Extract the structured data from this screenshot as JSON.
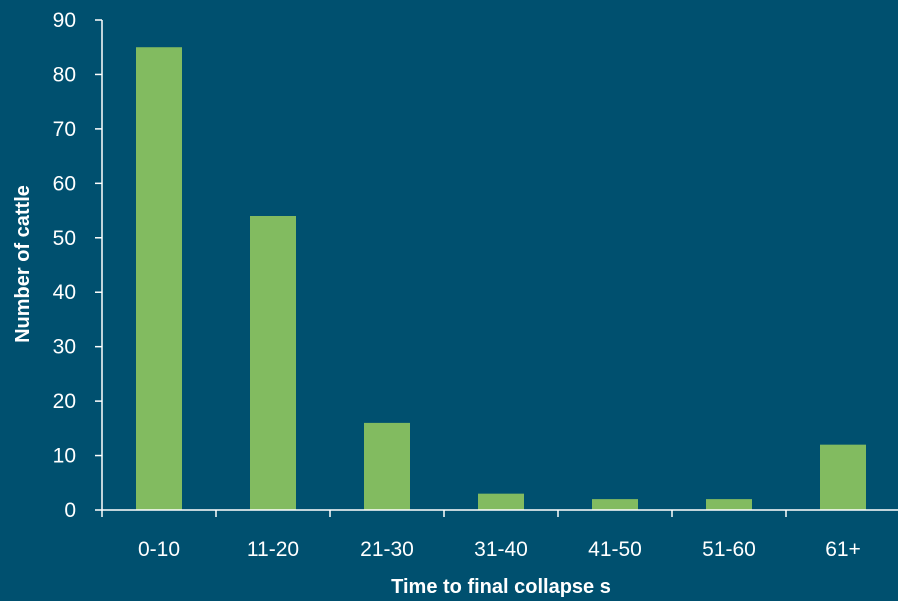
{
  "chart_data": {
    "type": "bar",
    "title": "",
    "xlabel": "Time to final collapse  s",
    "ylabel": "Number of cattle",
    "categories": [
      "0-10",
      "11-20",
      "21-30",
      "31-40",
      "41-50",
      "51-60",
      "61+"
    ],
    "values": [
      85,
      54,
      16,
      3,
      2,
      2,
      12
    ],
    "ylim": [
      0,
      90
    ],
    "yticks": [
      0,
      10,
      20,
      30,
      40,
      50,
      60,
      70,
      80,
      90
    ],
    "grid": false,
    "legend": "none",
    "bar_color": "#82bb60",
    "axis_color": "#ffffff",
    "background_color": "#00506f"
  }
}
